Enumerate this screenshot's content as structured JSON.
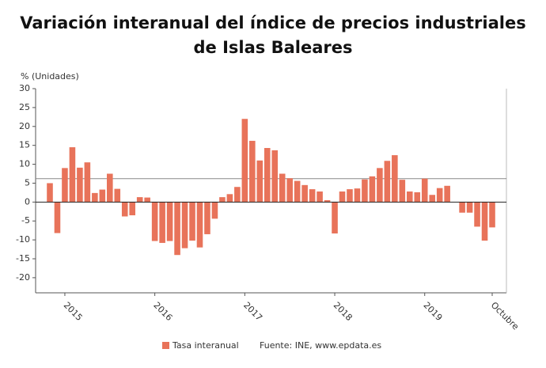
{
  "chart_data": {
    "type": "bar",
    "title": "Variación interanual del índice de precios industriales de Islas Baleares",
    "y_axis_label": "% (Unidades)",
    "categories": [
      null,
      null,
      "2015",
      null,
      null,
      null,
      null,
      null,
      null,
      null,
      null,
      null,
      null,
      null,
      "2016",
      null,
      null,
      null,
      null,
      null,
      null,
      null,
      null,
      null,
      null,
      null,
      "2017",
      null,
      null,
      null,
      null,
      null,
      null,
      null,
      null,
      null,
      null,
      null,
      "2018",
      null,
      null,
      null,
      null,
      null,
      null,
      null,
      null,
      null,
      null,
      null,
      "2019",
      null,
      null,
      null,
      null,
      null,
      null,
      null,
      null,
      "Octubre"
    ],
    "series": [
      {
        "name": "Tasa interanual",
        "color": "#e8735a",
        "values": [
          5,
          -8.2,
          9,
          14.5,
          9.1,
          10.5,
          2.4,
          3.3,
          7.5,
          3.5,
          -3.8,
          -3.5,
          1.3,
          1.2,
          -10.3,
          -10.8,
          -10.3,
          -14,
          -12.2,
          -10.2,
          -12,
          -8.5,
          -4.4,
          1.3,
          2.1,
          4,
          22,
          16.2,
          11,
          14.3,
          13.7,
          7.5,
          6.3,
          5.6,
          4.5,
          3.4,
          2.8,
          0.5,
          -8.3,
          2.8,
          3.4,
          3.6,
          6,
          6.8,
          9,
          10.9,
          12.4,
          5.9,
          2.8,
          2.6,
          6.2,
          1.9,
          3.7,
          4.3,
          null,
          -2.8,
          -2.8,
          -6.5,
          -10.2,
          -6.7
        ]
      }
    ],
    "ylim": [
      -24,
      30
    ],
    "yticks": [
      -20,
      -15,
      -10,
      -5,
      0,
      5,
      10,
      15,
      20,
      25,
      30
    ],
    "reference_line": 6.2,
    "grid": false,
    "source": "Fuente: INE, www.epdata.es"
  }
}
